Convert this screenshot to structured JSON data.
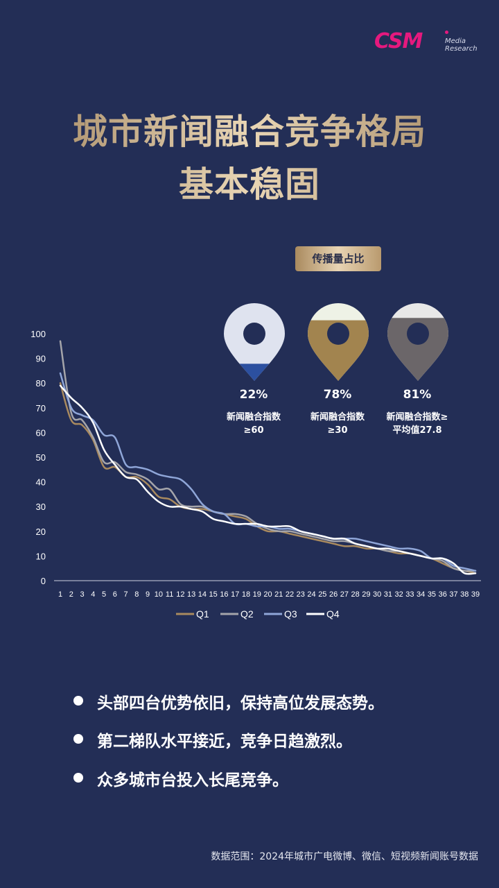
{
  "logo": {
    "mark": "CSM",
    "sub1": "Media",
    "sub2": "Research"
  },
  "title": {
    "line1": "城市新闻融合竞争格局",
    "line2": "基本稳固"
  },
  "badge": "传播量占比",
  "pins": [
    {
      "pct": "22%",
      "label1": "新闻融合指数",
      "label2": "≥60",
      "fill_fraction": 0.22,
      "color": "#2c50a0",
      "top_color": "#dfe3ef"
    },
    {
      "pct": "78%",
      "label1": "新闻融合指数",
      "label2": "≥30",
      "fill_fraction": 0.78,
      "color": "#a2844f",
      "top_color": "#eef2e6"
    },
    {
      "pct": "81%",
      "label1": "新闻融合指数≥",
      "label2": "平均值27.8",
      "fill_fraction": 0.81,
      "color": "#6b6669",
      "top_color": "#e8e8e8"
    }
  ],
  "chart_data": {
    "type": "line",
    "title": "",
    "xlabel": "",
    "ylabel": "",
    "ylim": [
      0,
      100
    ],
    "yticks": [
      0,
      10,
      20,
      30,
      40,
      50,
      60,
      70,
      80,
      90,
      100
    ],
    "grid": false,
    "legend_position": "bottom",
    "x": [
      1,
      2,
      3,
      4,
      5,
      6,
      7,
      8,
      9,
      10,
      11,
      12,
      13,
      14,
      15,
      16,
      17,
      18,
      19,
      20,
      21,
      22,
      23,
      24,
      25,
      26,
      27,
      28,
      29,
      30,
      31,
      32,
      33,
      34,
      35,
      36,
      37,
      38,
      39
    ],
    "series": [
      {
        "name": "Q1",
        "color": "#a98a5f",
        "values": [
          80,
          65,
          63,
          57,
          46,
          46,
          42,
          42,
          39,
          34,
          33,
          30,
          29,
          29,
          28,
          27,
          26,
          25,
          22,
          20,
          20,
          19,
          18,
          17,
          16,
          15,
          14,
          14,
          13,
          13,
          12,
          11,
          11,
          10,
          9,
          7,
          5,
          4,
          3
        ]
      },
      {
        "name": "Q2",
        "color": "#a5a5aa",
        "values": [
          97,
          68,
          65,
          58,
          48,
          48,
          44,
          43,
          41,
          37,
          37,
          31,
          30,
          30,
          28,
          27,
          27,
          26,
          23,
          21,
          20,
          20,
          19,
          18,
          17,
          16,
          16,
          15,
          14,
          13,
          12,
          12,
          11,
          10,
          9,
          8,
          5,
          4,
          4
        ]
      },
      {
        "name": "Q3",
        "color": "#8fa6d8",
        "values": [
          84,
          70,
          67,
          65,
          59,
          58,
          47,
          46,
          45,
          43,
          42,
          41,
          37,
          31,
          28,
          27,
          23,
          23,
          22,
          22,
          21,
          21,
          20,
          19,
          18,
          17,
          17,
          17,
          16,
          15,
          14,
          13,
          13,
          12,
          9,
          9,
          6,
          5,
          4
        ]
      },
      {
        "name": "Q4",
        "color": "#ffffff",
        "values": [
          79,
          74,
          70,
          64,
          53,
          47,
          42,
          41,
          36,
          32,
          30,
          30,
          29,
          28,
          25,
          24,
          23,
          23,
          23,
          22,
          22,
          22,
          20,
          19,
          18,
          17,
          17,
          15,
          14,
          13,
          13,
          12,
          11,
          10,
          9,
          9,
          7,
          3,
          3
        ]
      }
    ]
  },
  "bullets": [
    "头部四台优势依旧，保持高位发展态势。",
    "第二梯队水平接近，竞争日趋激烈。",
    "众多城市台投入长尾竞争。"
  ],
  "footer": "数据范围：2024年城市广电微博、微信、短视频新闻账号数据"
}
